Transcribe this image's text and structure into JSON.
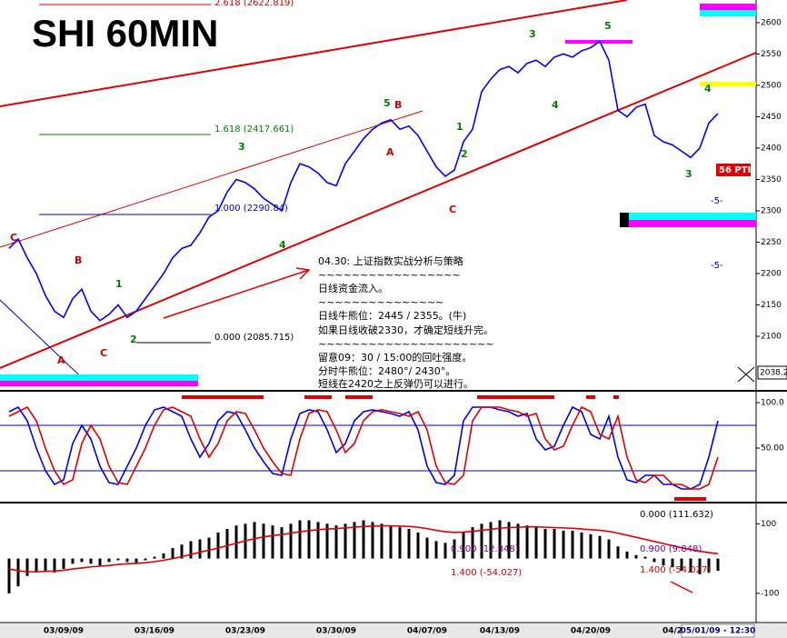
{
  "chart_data": [
    {
      "type": "line",
      "title": "SHI 60MIN",
      "series": [
        {
          "color": "#0000ff",
          "values": [
            2240,
            2255,
            2225,
            2200,
            2165,
            2140,
            2130,
            2160,
            2175,
            2140,
            2125,
            2135,
            2150,
            2130,
            2140,
            2160,
            2180,
            2200,
            2225,
            2240,
            2245,
            2265,
            2290,
            2300,
            2330,
            2350,
            2345,
            2335,
            2320,
            2310,
            2300,
            2345,
            2375,
            2370,
            2360,
            2345,
            2340,
            2375,
            2395,
            2415,
            2430,
            2440,
            2445,
            2430,
            2435,
            2420,
            2395,
            2370,
            2355,
            2365,
            2410,
            2430,
            2490,
            2510,
            2525,
            2530,
            2520,
            2535,
            2540,
            2530,
            2545,
            2550,
            2545,
            2555,
            2560,
            2570,
            2540,
            2460,
            2450,
            2465,
            2470,
            2420,
            2410,
            2405,
            2395,
            2385,
            2400,
            2440,
            2455
          ]
        }
      ],
      "ylim": [
        2016,
        2636
      ],
      "yticks": [
        2100,
        2150,
        2200,
        2250,
        2300,
        2350,
        2400,
        2450,
        2500,
        2550,
        2600
      ],
      "annotations": [
        "2.618 (2622.819)",
        "1.618 (2417.661)",
        "1.000 (2290.84)",
        "0.000 (2085.715)",
        "56 PTI",
        "-5-",
        "-5-",
        "2038.2",
        "5",
        "B",
        "3",
        "A",
        "3",
        "5",
        "4",
        "1",
        "2",
        "C",
        "4",
        "C",
        "B",
        "1",
        "2",
        "C",
        "A",
        "4",
        "3"
      ],
      "notes": [
        "04.30: 上证指数实战分析与策略",
        "~~~~~~~~~~~~~~~~~",
        "日线资金流入。",
        "~~~~~~~~~~~~~~~",
        "日线牛熊位：2445 / 2355。(牛)",
        "如果日线收破2330，才确定短线升完。",
        "~~~~~~~~~~~~~~~~~~~~~",
        "留意09：30 / 15:00的回吐强度。",
        "分时牛熊位：2480°/ 2430°。",
        "短线在2420之上反弹仍可以进行。"
      ]
    },
    {
      "type": "line",
      "series": [
        {
          "color": "#0000ee",
          "values": [
            90,
            95,
            80,
            50,
            25,
            10,
            15,
            55,
            75,
            60,
            30,
            12,
            10,
            30,
            50,
            75,
            92,
            95,
            90,
            85,
            60,
            40,
            55,
            80,
            90,
            88,
            70,
            50,
            35,
            22,
            20,
            60,
            88,
            92,
            90,
            70,
            45,
            55,
            80,
            90,
            92,
            90,
            88,
            85,
            90,
            70,
            30,
            12,
            10,
            20,
            80,
            95,
            95,
            95,
            92,
            90,
            85,
            88,
            60,
            48,
            52,
            75,
            95,
            90,
            65,
            60,
            85,
            40,
            15,
            12,
            20,
            20,
            10,
            10,
            5,
            5,
            10,
            40,
            80
          ]
        },
        {
          "color": "#e00000",
          "values": [
            85,
            90,
            95,
            80,
            50,
            25,
            10,
            15,
            55,
            75,
            60,
            30,
            12,
            10,
            30,
            50,
            75,
            92,
            95,
            90,
            85,
            60,
            40,
            55,
            80,
            90,
            88,
            70,
            50,
            35,
            22,
            20,
            60,
            88,
            92,
            90,
            70,
            45,
            55,
            80,
            90,
            92,
            90,
            88,
            85,
            90,
            70,
            30,
            12,
            10,
            20,
            80,
            95,
            95,
            95,
            92,
            90,
            85,
            88,
            60,
            48,
            52,
            75,
            95,
            90,
            65,
            60,
            85,
            40,
            15,
            12,
            20,
            20,
            10,
            10,
            5,
            5,
            10,
            40
          ]
        }
      ],
      "ylim": [
        -7,
        111
      ],
      "yticks": [
        {
          "value": 100,
          "label": "100.0"
        },
        {
          "value": 50,
          "label": "50.00"
        }
      ],
      "hlines": [
        75,
        25
      ]
    },
    {
      "type": "bar",
      "categories": [
        null,
        null,
        null,
        null,
        null,
        null,
        "03/09/09",
        null,
        null,
        null,
        null,
        null,
        null,
        null,
        null,
        null,
        "03/16/09",
        null,
        null,
        null,
        null,
        null,
        null,
        null,
        null,
        null,
        "03/23/09",
        null,
        null,
        null,
        null,
        null,
        null,
        null,
        null,
        null,
        "03/30/09",
        null,
        null,
        null,
        null,
        null,
        null,
        null,
        null,
        null,
        "04/07/09",
        null,
        null,
        null,
        null,
        null,
        null,
        null,
        "04/13/09",
        null,
        null,
        null,
        null,
        null,
        null,
        null,
        null,
        null,
        "04/20/09",
        null,
        null,
        null,
        null,
        null,
        null,
        null,
        null,
        "04/2",
        null,
        null,
        null,
        null,
        "05/01/09 - 12:30"
      ],
      "series": [
        {
          "kind": "bar",
          "color": "#000000",
          "values": [
            -100,
            -80,
            -50,
            -40,
            -35,
            -40,
            -30,
            -15,
            -10,
            -15,
            -20,
            -10,
            -5,
            -10,
            -15,
            -5,
            5,
            15,
            30,
            40,
            50,
            55,
            60,
            75,
            85,
            95,
            100,
            105,
            100,
            95,
            90,
            100,
            110,
            110,
            105,
            100,
            95,
            100,
            105,
            110,
            105,
            100,
            95,
            90,
            85,
            75,
            60,
            50,
            45,
            55,
            75,
            90,
            100,
            105,
            110,
            105,
            100,
            95,
            90,
            85,
            85,
            80,
            80,
            75,
            70,
            65,
            55,
            35,
            20,
            10,
            5,
            -10,
            -20,
            -25,
            -35,
            -40,
            -45,
            -40,
            -35
          ]
        },
        {
          "kind": "line",
          "color": "#e00000",
          "values": [
            -30,
            -35,
            -38,
            -38,
            -37,
            -36,
            -34,
            -30,
            -27,
            -24,
            -22,
            -20,
            -17,
            -15,
            -14,
            -12,
            -9,
            -5,
            0,
            5,
            12,
            18,
            24,
            30,
            37,
            44,
            51,
            57,
            62,
            66,
            69,
            73,
            77,
            80,
            83,
            85,
            86,
            88,
            90,
            92,
            93,
            94,
            94,
            93,
            92,
            90,
            86,
            81,
            77,
            75,
            76,
            78,
            81,
            84,
            87,
            89,
            90,
            91,
            91,
            90,
            89,
            88,
            87,
            85,
            83,
            81,
            78,
            73,
            67,
            61,
            55,
            49,
            43,
            37,
            31,
            26,
            21,
            17,
            14
          ]
        }
      ],
      "ylim": [
        -184,
        153
      ],
      "yticks": [
        100,
        -100
      ],
      "annotations": [
        "0.000 (111.632)",
        "0.900 (12.848)",
        "1.400 (-54.027)",
        "0.900 (9.848)",
        "1.400 (-54.027)"
      ]
    }
  ]
}
